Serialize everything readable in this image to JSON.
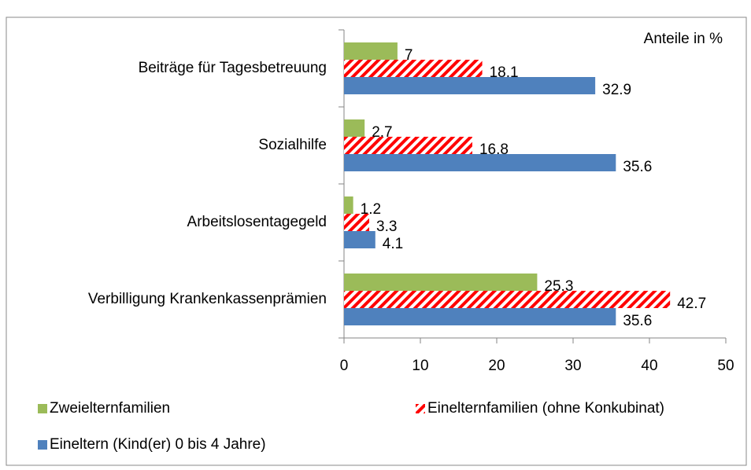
{
  "chart_data": {
    "type": "bar",
    "orientation": "horizontal",
    "annotation": "Anteile in %",
    "categories": [
      "Beiträge für Tagesbetreuung",
      "Sozialhilfe",
      "Arbeitslosentagegeld",
      "Verbilligung Krankenkassenprämien"
    ],
    "series": [
      {
        "name": "Zweielternfamilien",
        "color": "#9bbb59",
        "values": [
          7,
          2.7,
          1.2,
          25.3
        ]
      },
      {
        "name": "Einelternfamilien (ohne Konkubinat)",
        "color": "#ff0000",
        "pattern": "hatch",
        "values": [
          18.1,
          16.8,
          3.3,
          42.7
        ]
      },
      {
        "name": "Eineltern (Kind(er) 0 bis 4 Jahre)",
        "color": "#4f81bd",
        "values": [
          32.9,
          35.6,
          4.1,
          35.6
        ]
      }
    ],
    "xlim": [
      0,
      50
    ],
    "xticks": [
      0,
      10,
      20,
      30,
      40,
      50
    ]
  }
}
